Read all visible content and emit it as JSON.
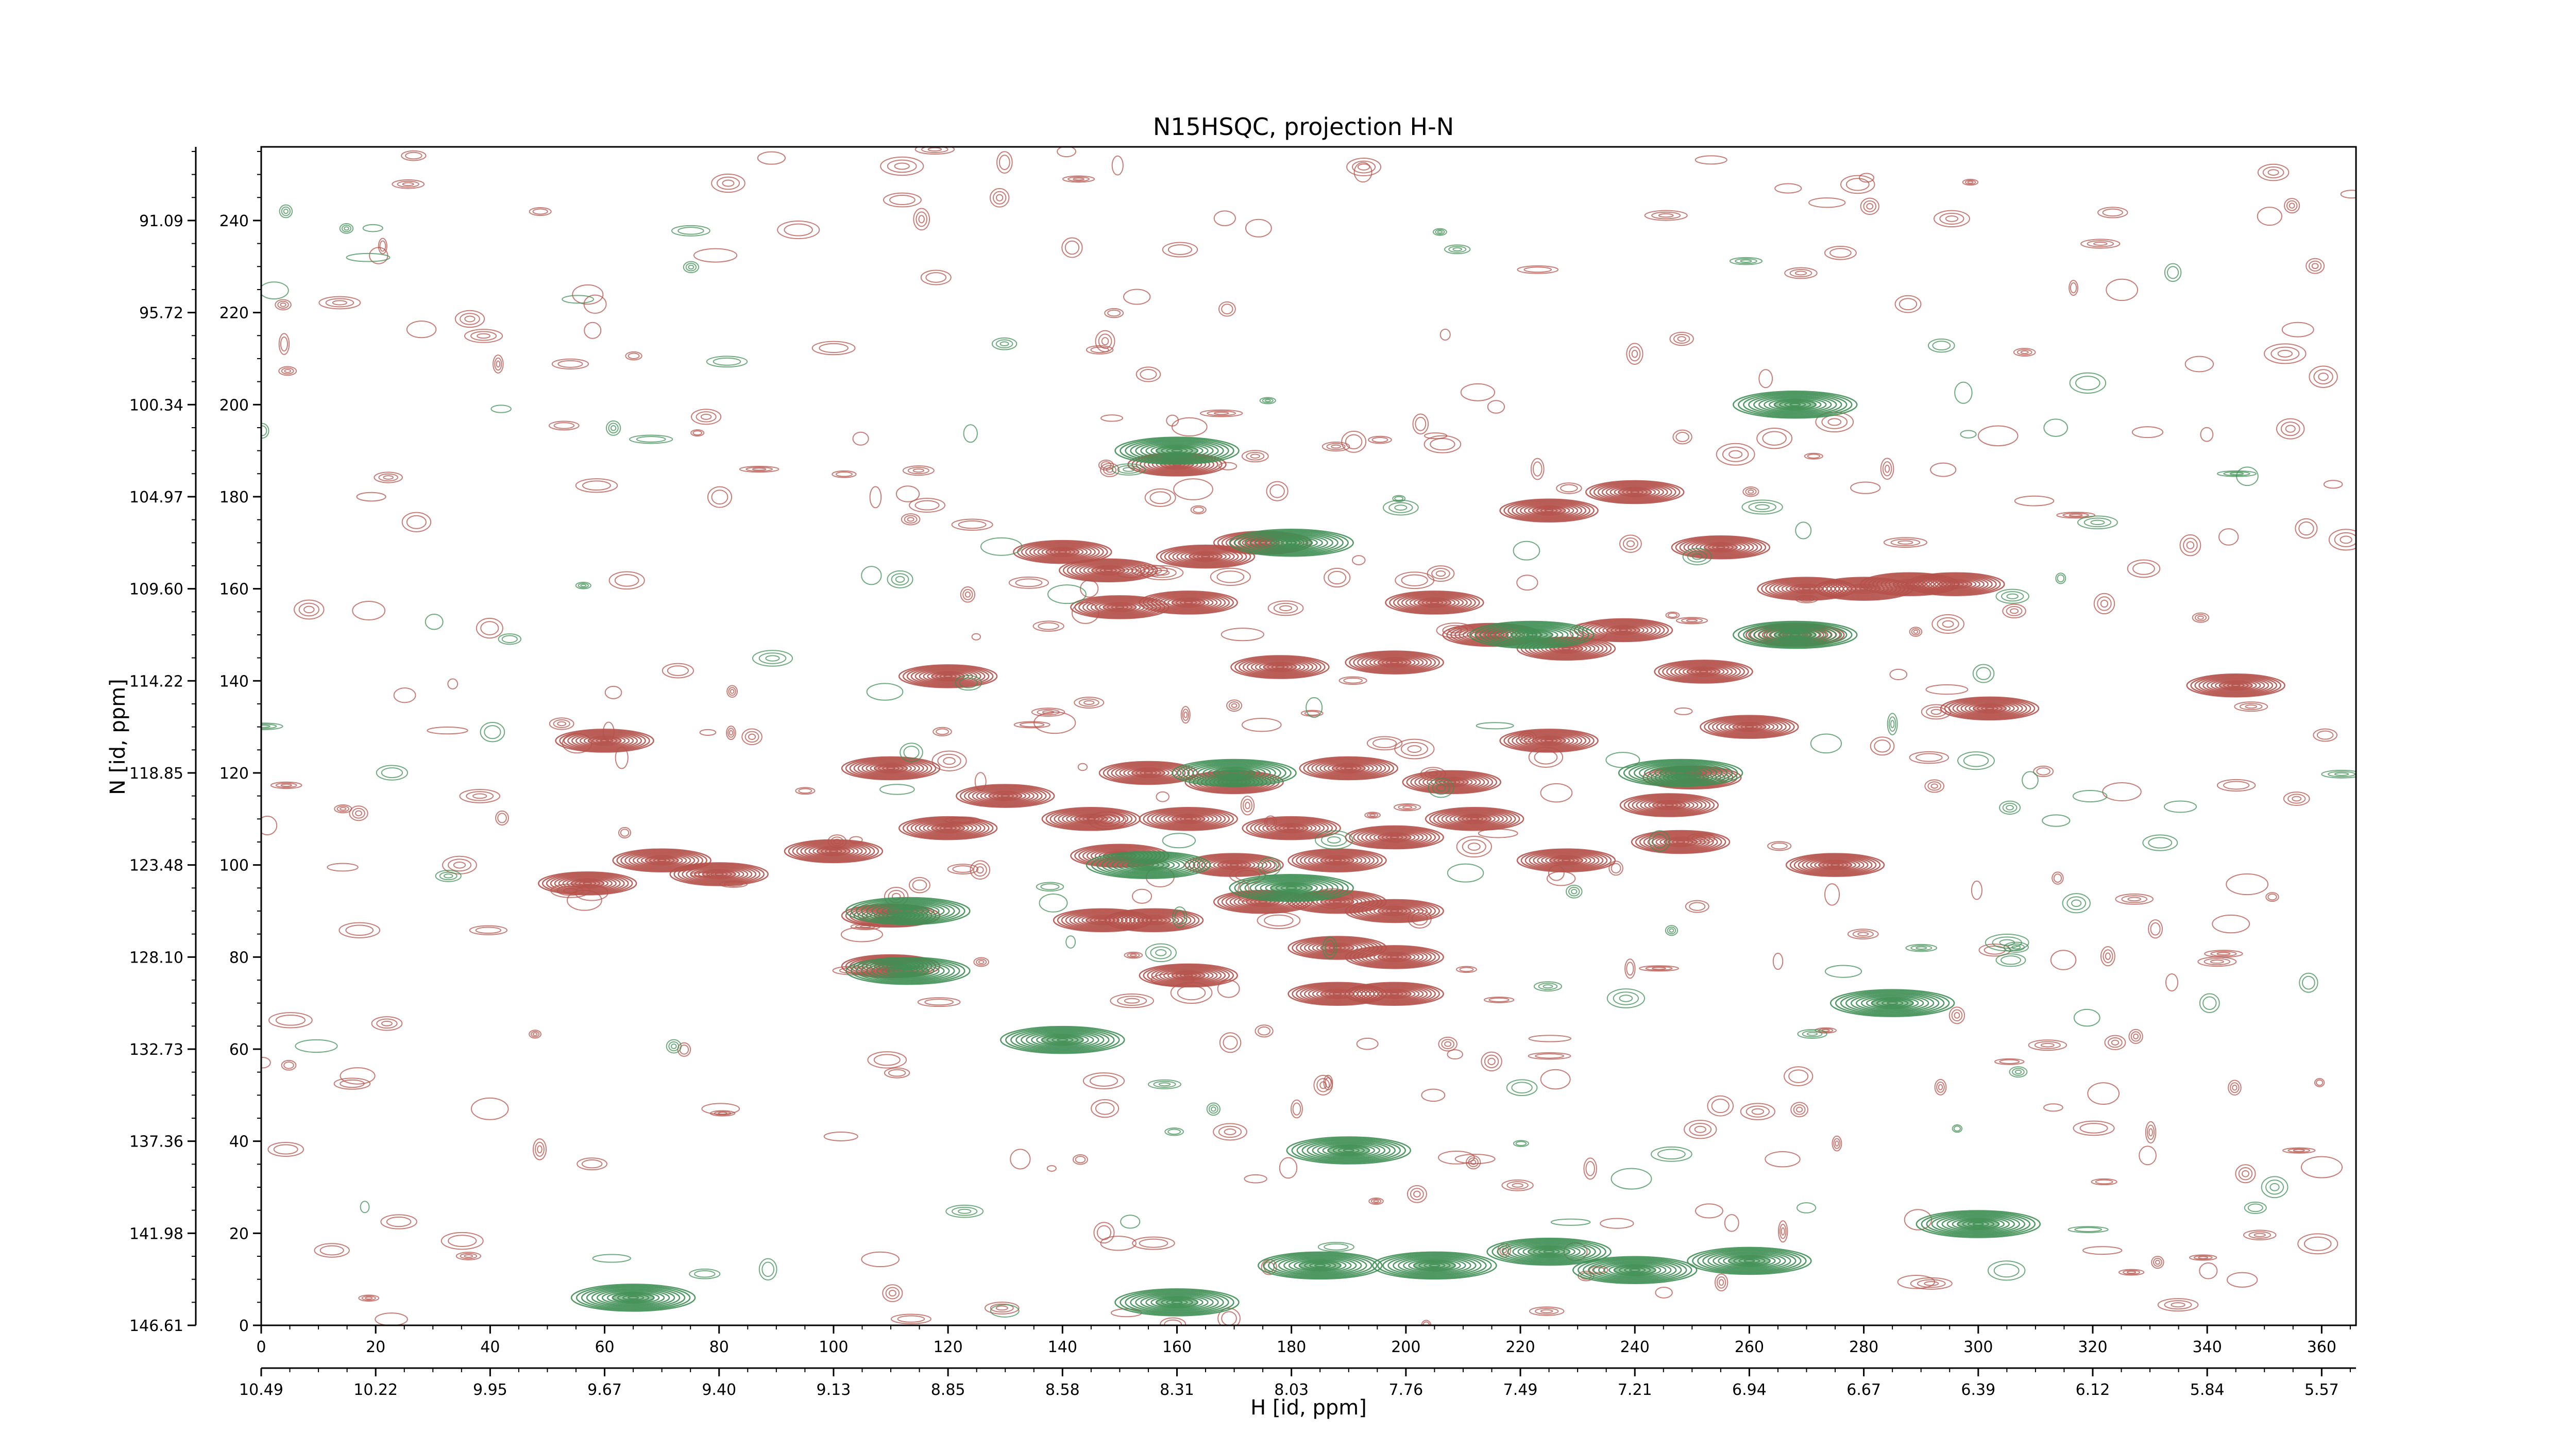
{
  "chart_data": {
    "type": "contour",
    "title": "N15HSQC, projection H-N",
    "xlabel": "H [id, ppm]",
    "ylabel": "N [id, ppm]",
    "xlim": [
      0,
      366
    ],
    "ylim": [
      0,
      256
    ],
    "x_index_ticks": [
      0,
      20,
      40,
      60,
      80,
      100,
      120,
      140,
      160,
      180,
      200,
      220,
      240,
      260,
      280,
      300,
      320,
      340,
      360
    ],
    "x_ppm_ticks": [
      "10.49",
      "10.22",
      "9.95",
      "9.67",
      "9.40",
      "9.13",
      "8.85",
      "8.58",
      "8.31",
      "8.03",
      "7.76",
      "7.49",
      "7.21",
      "6.94",
      "6.67",
      "6.39",
      "6.12",
      "5.84",
      "5.57"
    ],
    "y_index_ticks": [
      0,
      20,
      40,
      60,
      80,
      100,
      120,
      140,
      160,
      180,
      200,
      220,
      240
    ],
    "y_ppm_ticks": [
      "146.61",
      "141.98",
      "137.36",
      "132.73",
      "128.10",
      "123.48",
      "118.85",
      "114.22",
      "109.60",
      "104.97",
      "100.34",
      "95.72",
      "91.09"
    ],
    "colors": {
      "positive": "#b5514a",
      "negative": "#3f8f54"
    },
    "peaks": [
      {
        "x": 160,
        "y": 187,
        "sign": "pos"
      },
      {
        "x": 140,
        "y": 168,
        "sign": "pos"
      },
      {
        "x": 148,
        "y": 164,
        "sign": "pos"
      },
      {
        "x": 165,
        "y": 167,
        "sign": "pos"
      },
      {
        "x": 175,
        "y": 170,
        "sign": "pos"
      },
      {
        "x": 150,
        "y": 156,
        "sign": "pos"
      },
      {
        "x": 162,
        "y": 157,
        "sign": "pos"
      },
      {
        "x": 120,
        "y": 141,
        "sign": "pos"
      },
      {
        "x": 178,
        "y": 143,
        "sign": "pos"
      },
      {
        "x": 198,
        "y": 144,
        "sign": "pos"
      },
      {
        "x": 205,
        "y": 157,
        "sign": "pos"
      },
      {
        "x": 215,
        "y": 150,
        "sign": "pos"
      },
      {
        "x": 228,
        "y": 147,
        "sign": "pos"
      },
      {
        "x": 238,
        "y": 151,
        "sign": "pos"
      },
      {
        "x": 225,
        "y": 177,
        "sign": "pos"
      },
      {
        "x": 240,
        "y": 181,
        "sign": "pos"
      },
      {
        "x": 255,
        "y": 169,
        "sign": "pos"
      },
      {
        "x": 270,
        "y": 160,
        "sign": "pos"
      },
      {
        "x": 280,
        "y": 160,
        "sign": "pos"
      },
      {
        "x": 288,
        "y": 161,
        "sign": "pos"
      },
      {
        "x": 296,
        "y": 161,
        "sign": "pos"
      },
      {
        "x": 252,
        "y": 142,
        "sign": "pos"
      },
      {
        "x": 268,
        "y": 150,
        "sign": "pos"
      },
      {
        "x": 302,
        "y": 134,
        "sign": "pos"
      },
      {
        "x": 345,
        "y": 139,
        "sign": "pos"
      },
      {
        "x": 60,
        "y": 127,
        "sign": "pos"
      },
      {
        "x": 110,
        "y": 121,
        "sign": "pos"
      },
      {
        "x": 130,
        "y": 115,
        "sign": "pos"
      },
      {
        "x": 155,
        "y": 120,
        "sign": "pos"
      },
      {
        "x": 170,
        "y": 118,
        "sign": "pos"
      },
      {
        "x": 190,
        "y": 121,
        "sign": "pos"
      },
      {
        "x": 208,
        "y": 118,
        "sign": "pos"
      },
      {
        "x": 225,
        "y": 127,
        "sign": "pos"
      },
      {
        "x": 260,
        "y": 130,
        "sign": "pos"
      },
      {
        "x": 250,
        "y": 119,
        "sign": "pos"
      },
      {
        "x": 246,
        "y": 113,
        "sign": "pos"
      },
      {
        "x": 120,
        "y": 108,
        "sign": "pos"
      },
      {
        "x": 145,
        "y": 110,
        "sign": "pos"
      },
      {
        "x": 162,
        "y": 110,
        "sign": "pos"
      },
      {
        "x": 180,
        "y": 108,
        "sign": "pos"
      },
      {
        "x": 198,
        "y": 106,
        "sign": "pos"
      },
      {
        "x": 212,
        "y": 110,
        "sign": "pos"
      },
      {
        "x": 70,
        "y": 101,
        "sign": "pos"
      },
      {
        "x": 57,
        "y": 96,
        "sign": "pos"
      },
      {
        "x": 80,
        "y": 98,
        "sign": "pos"
      },
      {
        "x": 100,
        "y": 103,
        "sign": "pos"
      },
      {
        "x": 150,
        "y": 102,
        "sign": "pos"
      },
      {
        "x": 170,
        "y": 100,
        "sign": "pos"
      },
      {
        "x": 188,
        "y": 101,
        "sign": "pos"
      },
      {
        "x": 228,
        "y": 101,
        "sign": "pos"
      },
      {
        "x": 248,
        "y": 105,
        "sign": "pos"
      },
      {
        "x": 275,
        "y": 100,
        "sign": "pos"
      },
      {
        "x": 110,
        "y": 89,
        "sign": "pos"
      },
      {
        "x": 147,
        "y": 88,
        "sign": "pos"
      },
      {
        "x": 156,
        "y": 88,
        "sign": "pos"
      },
      {
        "x": 175,
        "y": 92,
        "sign": "pos"
      },
      {
        "x": 188,
        "y": 92,
        "sign": "pos"
      },
      {
        "x": 198,
        "y": 90,
        "sign": "pos"
      },
      {
        "x": 188,
        "y": 82,
        "sign": "pos"
      },
      {
        "x": 198,
        "y": 80,
        "sign": "pos"
      },
      {
        "x": 188,
        "y": 72,
        "sign": "pos"
      },
      {
        "x": 198,
        "y": 72,
        "sign": "pos"
      },
      {
        "x": 110,
        "y": 78,
        "sign": "pos"
      },
      {
        "x": 162,
        "y": 76,
        "sign": "pos"
      },
      {
        "x": 160,
        "y": 5,
        "sign": "neg"
      },
      {
        "x": 185,
        "y": 13,
        "sign": "neg"
      },
      {
        "x": 205,
        "y": 13,
        "sign": "neg"
      },
      {
        "x": 225,
        "y": 16,
        "sign": "neg"
      },
      {
        "x": 240,
        "y": 12,
        "sign": "neg"
      },
      {
        "x": 260,
        "y": 14,
        "sign": "neg"
      },
      {
        "x": 300,
        "y": 22,
        "sign": "neg"
      },
      {
        "x": 190,
        "y": 38,
        "sign": "neg"
      },
      {
        "x": 65,
        "y": 6,
        "sign": "neg"
      },
      {
        "x": 140,
        "y": 62,
        "sign": "neg"
      },
      {
        "x": 285,
        "y": 70,
        "sign": "neg"
      },
      {
        "x": 160,
        "y": 190,
        "sign": "neg"
      },
      {
        "x": 268,
        "y": 200,
        "sign": "neg"
      },
      {
        "x": 180,
        "y": 170,
        "sign": "neg"
      },
      {
        "x": 268,
        "y": 150,
        "sign": "neg"
      },
      {
        "x": 222,
        "y": 150,
        "sign": "neg"
      },
      {
        "x": 170,
        "y": 120,
        "sign": "neg"
      },
      {
        "x": 248,
        "y": 120,
        "sign": "neg"
      },
      {
        "x": 155,
        "y": 100,
        "sign": "neg"
      },
      {
        "x": 180,
        "y": 95,
        "sign": "neg"
      },
      {
        "x": 113,
        "y": 90,
        "sign": "neg"
      },
      {
        "x": 113,
        "y": 77,
        "sign": "neg"
      }
    ]
  }
}
